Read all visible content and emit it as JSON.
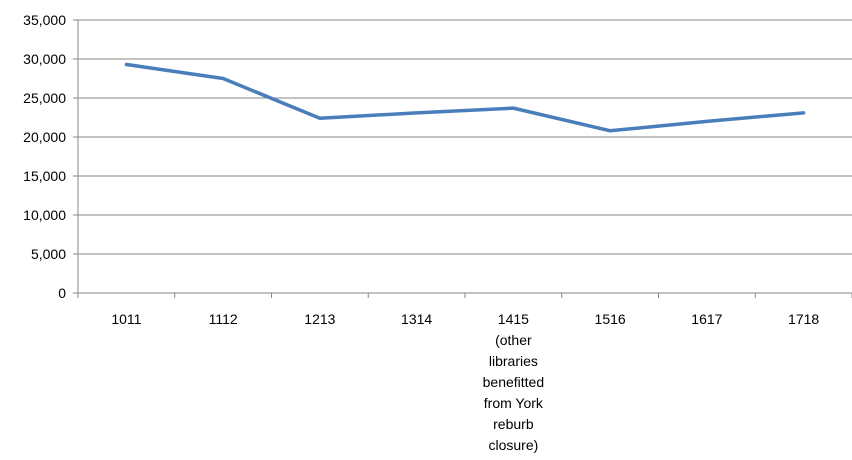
{
  "chart_data": {
    "type": "line",
    "title": "",
    "xlabel": "",
    "ylabel": "",
    "categories": [
      "1011",
      "1112",
      "1213",
      "1314",
      "1415\n(other\nlibraries\nbenefitted\nfrom York\nreburb\nclosure)",
      "1516",
      "1617",
      "1718"
    ],
    "series": [
      {
        "values": [
          29300,
          27500,
          22400,
          23100,
          23700,
          20800,
          22000,
          23100
        ]
      }
    ],
    "ylim": [
      0,
      35000
    ],
    "yticks": [
      "0",
      "5,000",
      "10,000",
      "15,000",
      "20,000",
      "25,000",
      "30,000",
      "35,000"
    ],
    "grid": true,
    "legend": "none",
    "colors": {
      "line": "#4a7ebb",
      "grid": "#868686",
      "axis": "#868686"
    }
  }
}
